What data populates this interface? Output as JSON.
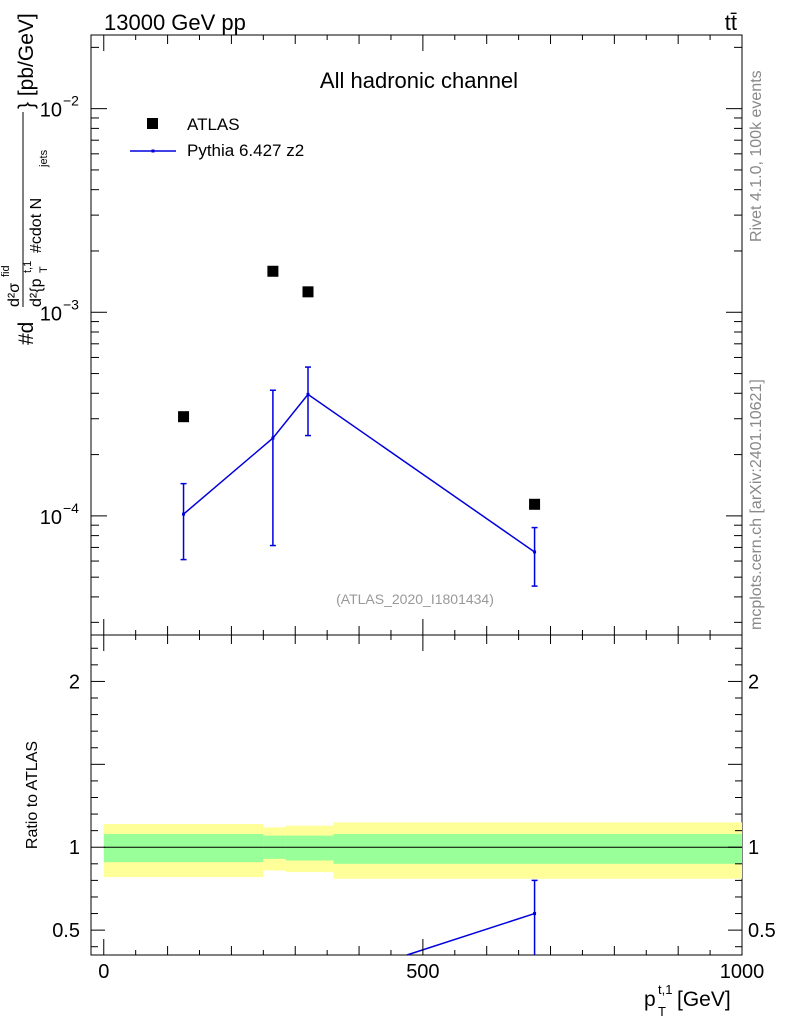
{
  "header": {
    "left": "13000 GeV pp",
    "right": "tt̄"
  },
  "side_labels": {
    "rivet": "Rivet 4.1.0,  100k events",
    "mcplots": "mcplots.cern.ch [arXiv:2401.10621]"
  },
  "colors": {
    "atlas": "#000000",
    "pythia": "#0000dd",
    "band_outer": "#ffff99",
    "band_inner": "#99ff99"
  },
  "chart_data": [
    {
      "type": "scatter",
      "title": "All hadronic channel",
      "ylabel": "#d²σᶠᴵᵈ / d²{p_T^{t,1} #cdot N_jets} [pb/GeV]",
      "ylabel_parts": {
        "num": "d²σ",
        "num_sup": "fid",
        "den": "d²{p",
        "den_sup": "t,1",
        "den_sub": "T",
        "den_rest": " #cdot N",
        "den_sub2": "jets",
        "prefix": "#d",
        "suffix": "} [pb/GeV]"
      },
      "yscale": "log",
      "ylim": [
        2.6e-05,
        0.023
      ],
      "yticks": [
        {
          "value": 0.0001,
          "base": "10",
          "exp": "−4"
        },
        {
          "value": 0.001,
          "base": "10",
          "exp": "−3"
        },
        {
          "value": 0.01,
          "base": "10",
          "exp": "−2"
        }
      ],
      "xlim": [
        -20,
        1000
      ],
      "annotation": "(ATLAS_2020_I1801434)",
      "legend": {
        "placement": "top-left",
        "entries": [
          "ATLAS",
          "Pythia 6.427 z2"
        ]
      },
      "series": [
        {
          "name": "ATLAS",
          "style": "markers",
          "x": [
            125,
            265,
            320,
            675
          ],
          "y": [
            0.000307,
            0.00159,
            0.00126,
            0.000114
          ]
        },
        {
          "name": "Pythia 6.427 z2",
          "style": "line-errorbars",
          "x": [
            125,
            265,
            320,
            675
          ],
          "y": [
            0.000102,
            0.000241,
            0.000395,
            6.65e-05
          ],
          "yerr_low": [
            6.1e-05,
            7.15e-05,
            0.000248,
            4.52e-05
          ],
          "yerr_high": [
            0.000144,
            0.000414,
            0.000538,
            8.76e-05
          ]
        }
      ]
    },
    {
      "type": "line",
      "ylabel": "Ratio to ATLAS",
      "xlabel_parts": {
        "main": "p",
        "sup": "t,1",
        "sub": "T",
        "rest": " [GeV]"
      },
      "xlim": [
        -20,
        1000
      ],
      "ylim": [
        0.35,
        2.28
      ],
      "xticks": [
        0,
        500,
        1000
      ],
      "yticks": [
        0.5,
        1,
        2
      ],
      "reference_line": 1,
      "bands": [
        {
          "x0": 0,
          "x1": 250,
          "outer": [
            0.82,
            1.14
          ],
          "inner": [
            0.91,
            1.08
          ]
        },
        {
          "x0": 250,
          "x1": 285,
          "outer": [
            0.86,
            1.12
          ],
          "inner": [
            0.93,
            1.07
          ]
        },
        {
          "x0": 285,
          "x1": 360,
          "outer": [
            0.85,
            1.13
          ],
          "inner": [
            0.92,
            1.07
          ]
        },
        {
          "x0": 360,
          "x1": 1000,
          "outer": [
            0.81,
            1.15
          ],
          "inner": [
            0.9,
            1.08
          ]
        }
      ],
      "series": [
        {
          "name": "Pythia 6.427 z2",
          "style": "line-errorbars",
          "x": [
            475,
            675
          ],
          "y": [
            0.35,
            0.6
          ],
          "yerr_low": [
            null,
            0.35
          ],
          "yerr_high": [
            null,
            0.8
          ]
        }
      ]
    }
  ]
}
